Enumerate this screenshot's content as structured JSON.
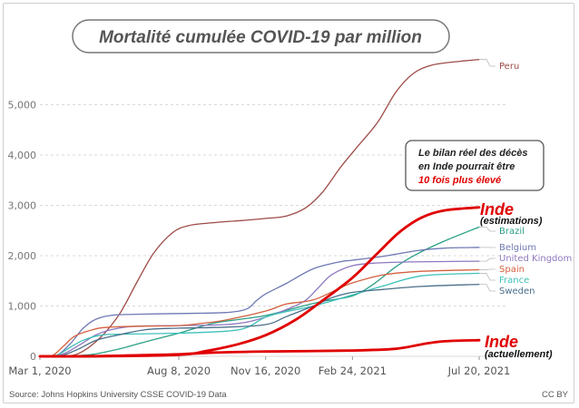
{
  "chart_data": {
    "type": "line",
    "title": "Mortalité cumulée COVID-19 par million",
    "xlabel": "",
    "ylabel": "",
    "x_ticks": [
      "Mar 1, 2020",
      "Aug 8, 2020",
      "Nov 16, 2020",
      "Feb 24, 2021",
      "Jul 20, 2021"
    ],
    "x_range": [
      "2020-03-01",
      "2021-07-20"
    ],
    "ylim": [
      0,
      6000
    ],
    "y_ticks": [
      "0",
      "1,000",
      "2,000",
      "3,000",
      "4,000",
      "5,000"
    ],
    "grid": "horizontal, dashed",
    "series": [
      {
        "name": "Peru",
        "color": "#9e4b47",
        "width": 1.3,
        "points": [
          [
            "2020-03-01",
            0
          ],
          [
            "2020-03-25",
            2
          ],
          [
            "2020-04-15",
            60
          ],
          [
            "2020-05-10",
            380
          ],
          [
            "2020-06-01",
            850
          ],
          [
            "2020-06-20",
            1450
          ],
          [
            "2020-07-10",
            2050
          ],
          [
            "2020-08-01",
            2460
          ],
          [
            "2020-08-20",
            2600
          ],
          [
            "2020-09-20",
            2660
          ],
          [
            "2020-10-20",
            2700
          ],
          [
            "2020-11-16",
            2740
          ],
          [
            "2020-12-10",
            2790
          ],
          [
            "2021-01-01",
            2950
          ],
          [
            "2021-01-20",
            3250
          ],
          [
            "2021-02-10",
            3750
          ],
          [
            "2021-03-01",
            4150
          ],
          [
            "2021-03-25",
            4650
          ],
          [
            "2021-04-15",
            5250
          ],
          [
            "2021-05-05",
            5620
          ],
          [
            "2021-05-25",
            5780
          ],
          [
            "2021-06-15",
            5840
          ],
          [
            "2021-07-20",
            5900
          ]
        ]
      },
      {
        "name": "Brazil",
        "color": "#2aa085",
        "width": 1.3,
        "points": [
          [
            "2020-03-01",
            0
          ],
          [
            "2020-04-01",
            5
          ],
          [
            "2020-05-01",
            40
          ],
          [
            "2020-06-01",
            150
          ],
          [
            "2020-07-01",
            290
          ],
          [
            "2020-08-08",
            460
          ],
          [
            "2020-09-15",
            650
          ],
          [
            "2020-10-15",
            730
          ],
          [
            "2020-11-16",
            810
          ],
          [
            "2020-12-20",
            960
          ],
          [
            "2021-01-20",
            1090
          ],
          [
            "2021-02-24",
            1200
          ],
          [
            "2021-03-20",
            1430
          ],
          [
            "2021-04-15",
            1780
          ],
          [
            "2021-05-10",
            2040
          ],
          [
            "2021-06-10",
            2290
          ],
          [
            "2021-07-20",
            2570
          ]
        ]
      },
      {
        "name": "Belgium",
        "color": "#6f79b3",
        "width": 1.3,
        "points": [
          [
            "2020-03-01",
            0
          ],
          [
            "2020-03-20",
            20
          ],
          [
            "2020-04-05",
            250
          ],
          [
            "2020-04-20",
            560
          ],
          [
            "2020-05-05",
            740
          ],
          [
            "2020-05-25",
            820
          ],
          [
            "2020-07-01",
            840
          ],
          [
            "2020-08-08",
            850
          ],
          [
            "2020-10-01",
            870
          ],
          [
            "2020-10-25",
            940
          ],
          [
            "2020-11-05",
            1100
          ],
          [
            "2020-11-16",
            1240
          ],
          [
            "2020-12-10",
            1450
          ],
          [
            "2021-01-10",
            1740
          ],
          [
            "2021-02-10",
            1880
          ],
          [
            "2021-02-24",
            1910
          ],
          [
            "2021-04-01",
            1990
          ],
          [
            "2021-05-10",
            2100
          ],
          [
            "2021-06-10",
            2150
          ],
          [
            "2021-07-20",
            2165
          ]
        ]
      },
      {
        "name": "United Kingdom",
        "color": "#8f78c0",
        "width": 1.3,
        "points": [
          [
            "2020-03-01",
            0
          ],
          [
            "2020-03-25",
            30
          ],
          [
            "2020-04-15",
            220
          ],
          [
            "2020-05-05",
            430
          ],
          [
            "2020-05-25",
            540
          ],
          [
            "2020-06-20",
            600
          ],
          [
            "2020-08-08",
            610
          ],
          [
            "2020-10-01",
            630
          ],
          [
            "2020-10-25",
            680
          ],
          [
            "2020-11-16",
            780
          ],
          [
            "2020-12-10",
            930
          ],
          [
            "2020-12-31",
            1100
          ],
          [
            "2021-01-15",
            1350
          ],
          [
            "2021-01-31",
            1620
          ],
          [
            "2021-02-24",
            1800
          ],
          [
            "2021-03-25",
            1855
          ],
          [
            "2021-05-01",
            1875
          ],
          [
            "2021-07-20",
            1890
          ]
        ]
      },
      {
        "name": "Spain",
        "color": "#d2613f",
        "width": 1.3,
        "points": [
          [
            "2020-03-01",
            0
          ],
          [
            "2020-03-15",
            10
          ],
          [
            "2020-03-28",
            200
          ],
          [
            "2020-04-10",
            400
          ],
          [
            "2020-05-01",
            530
          ],
          [
            "2020-05-20",
            580
          ],
          [
            "2020-07-01",
            600
          ],
          [
            "2020-08-08",
            610
          ],
          [
            "2020-09-01",
            650
          ],
          [
            "2020-10-01",
            720
          ],
          [
            "2020-11-16",
            900
          ],
          [
            "2020-12-10",
            1040
          ],
          [
            "2021-01-10",
            1120
          ],
          [
            "2021-02-10",
            1360
          ],
          [
            "2021-02-24",
            1460
          ],
          [
            "2021-04-01",
            1620
          ],
          [
            "2021-05-15",
            1690
          ],
          [
            "2021-07-20",
            1720
          ]
        ]
      },
      {
        "name": "France",
        "color": "#3dc1b9",
        "width": 1.3,
        "points": [
          [
            "2020-03-01",
            0
          ],
          [
            "2020-03-20",
            20
          ],
          [
            "2020-04-05",
            180
          ],
          [
            "2020-04-20",
            320
          ],
          [
            "2020-05-10",
            420
          ],
          [
            "2020-06-01",
            440
          ],
          [
            "2020-08-08",
            460
          ],
          [
            "2020-10-01",
            500
          ],
          [
            "2020-10-25",
            570
          ],
          [
            "2020-11-16",
            780
          ],
          [
            "2020-12-10",
            890
          ],
          [
            "2021-01-10",
            1000
          ],
          [
            "2021-02-24",
            1220
          ],
          [
            "2021-04-01",
            1400
          ],
          [
            "2021-05-15",
            1600
          ],
          [
            "2021-07-20",
            1650
          ]
        ]
      },
      {
        "name": "Sweden",
        "color": "#4a6f8a",
        "width": 1.3,
        "points": [
          [
            "2020-03-01",
            0
          ],
          [
            "2020-03-25",
            10
          ],
          [
            "2020-04-15",
            150
          ],
          [
            "2020-05-05",
            320
          ],
          [
            "2020-06-01",
            430
          ],
          [
            "2020-07-01",
            530
          ],
          [
            "2020-08-08",
            560
          ],
          [
            "2020-10-01",
            580
          ],
          [
            "2020-11-16",
            630
          ],
          [
            "2020-12-10",
            790
          ],
          [
            "2021-01-10",
            1000
          ],
          [
            "2021-02-01",
            1170
          ],
          [
            "2021-02-24",
            1270
          ],
          [
            "2021-04-01",
            1330
          ],
          [
            "2021-05-15",
            1390
          ],
          [
            "2021-07-20",
            1430
          ]
        ]
      },
      {
        "name": "Inde (estimations)",
        "color": "#e00000",
        "width": 2.8,
        "points": [
          [
            "2020-03-01",
            0
          ],
          [
            "2020-05-01",
            0
          ],
          [
            "2020-08-08",
            30
          ],
          [
            "2020-09-10",
            110
          ],
          [
            "2020-10-15",
            240
          ],
          [
            "2020-11-16",
            420
          ],
          [
            "2020-12-20",
            720
          ],
          [
            "2021-01-20",
            1100
          ],
          [
            "2021-02-24",
            1560
          ],
          [
            "2021-03-25",
            2050
          ],
          [
            "2021-04-20",
            2480
          ],
          [
            "2021-05-15",
            2760
          ],
          [
            "2021-06-10",
            2900
          ],
          [
            "2021-07-20",
            2960
          ]
        ]
      },
      {
        "name": "Inde (actuellement)",
        "color": "#e00000",
        "width": 2.8,
        "points": [
          [
            "2020-03-01",
            0
          ],
          [
            "2020-05-01",
            3
          ],
          [
            "2020-07-01",
            25
          ],
          [
            "2020-08-08",
            40
          ],
          [
            "2020-09-20",
            75
          ],
          [
            "2020-11-16",
            95
          ],
          [
            "2021-02-24",
            115
          ],
          [
            "2021-04-15",
            150
          ],
          [
            "2021-05-15",
            240
          ],
          [
            "2021-06-10",
            300
          ],
          [
            "2021-07-20",
            320
          ]
        ]
      }
    ],
    "annotations": {
      "note_line1": "Le bilan réel des décès",
      "note_line2": "en Inde pourrait être",
      "note_line3": "10 fois plus élevé",
      "inde_top_title": "Inde",
      "inde_top_sub": "(estimations)",
      "inde_bottom_title": "Inde",
      "inde_bottom_sub": "(actuellement)"
    }
  },
  "footer": {
    "source": "Source: Johns Hopkins University CSSE COVID-19 Data",
    "license": "CC BY"
  }
}
